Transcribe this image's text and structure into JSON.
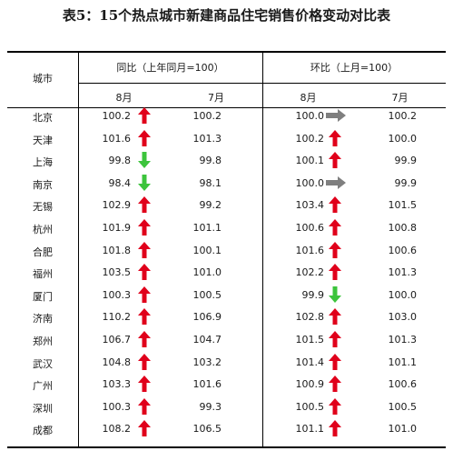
{
  "title": "表5：15个热点城市新建商品住宅销售价格变动对比表",
  "headers": {
    "city": "城市",
    "yoy": "同比（上年同月=100）",
    "mom": "环比（上月=100）",
    "month_aug": "8月",
    "month_jul": "7月"
  },
  "colors": {
    "up": "#e0001b",
    "down": "#3cc43c",
    "flat": "#7f7f7f"
  },
  "rows": [
    {
      "city": "北京",
      "yoy_aug": "100.2",
      "yoy_aug_trend": "up",
      "yoy_jul": "100.2",
      "mom_aug": "100.0",
      "mom_aug_trend": "flat",
      "mom_jul": "100.2"
    },
    {
      "city": "天津",
      "yoy_aug": "101.6",
      "yoy_aug_trend": "up",
      "yoy_jul": "101.3",
      "mom_aug": "100.2",
      "mom_aug_trend": "up",
      "mom_jul": "100.0"
    },
    {
      "city": "上海",
      "yoy_aug": "99.8",
      "yoy_aug_trend": "down",
      "yoy_jul": "99.8",
      "mom_aug": "100.1",
      "mom_aug_trend": "up",
      "mom_jul": "99.9"
    },
    {
      "city": "南京",
      "yoy_aug": "98.4",
      "yoy_aug_trend": "down",
      "yoy_jul": "98.1",
      "mom_aug": "100.0",
      "mom_aug_trend": "flat",
      "mom_jul": "99.9"
    },
    {
      "city": "无锡",
      "yoy_aug": "102.9",
      "yoy_aug_trend": "up",
      "yoy_jul": "99.2",
      "mom_aug": "103.4",
      "mom_aug_trend": "up",
      "mom_jul": "101.5"
    },
    {
      "city": "杭州",
      "yoy_aug": "101.9",
      "yoy_aug_trend": "up",
      "yoy_jul": "101.1",
      "mom_aug": "100.6",
      "mom_aug_trend": "up",
      "mom_jul": "100.8"
    },
    {
      "city": "合肥",
      "yoy_aug": "101.8",
      "yoy_aug_trend": "up",
      "yoy_jul": "100.1",
      "mom_aug": "101.6",
      "mom_aug_trend": "up",
      "mom_jul": "100.6"
    },
    {
      "city": "福州",
      "yoy_aug": "103.5",
      "yoy_aug_trend": "up",
      "yoy_jul": "101.0",
      "mom_aug": "102.2",
      "mom_aug_trend": "up",
      "mom_jul": "101.3"
    },
    {
      "city": "厦门",
      "yoy_aug": "100.3",
      "yoy_aug_trend": "up",
      "yoy_jul": "100.5",
      "mom_aug": "99.9",
      "mom_aug_trend": "down",
      "mom_jul": "100.0"
    },
    {
      "city": "济南",
      "yoy_aug": "110.2",
      "yoy_aug_trend": "up",
      "yoy_jul": "106.9",
      "mom_aug": "102.8",
      "mom_aug_trend": "up",
      "mom_jul": "103.0"
    },
    {
      "city": "郑州",
      "yoy_aug": "106.7",
      "yoy_aug_trend": "up",
      "yoy_jul": "104.7",
      "mom_aug": "101.5",
      "mom_aug_trend": "up",
      "mom_jul": "101.3"
    },
    {
      "city": "武汉",
      "yoy_aug": "104.8",
      "yoy_aug_trend": "up",
      "yoy_jul": "103.2",
      "mom_aug": "101.4",
      "mom_aug_trend": "up",
      "mom_jul": "101.1"
    },
    {
      "city": "广州",
      "yoy_aug": "103.3",
      "yoy_aug_trend": "up",
      "yoy_jul": "101.6",
      "mom_aug": "100.9",
      "mom_aug_trend": "up",
      "mom_jul": "100.6"
    },
    {
      "city": "深圳",
      "yoy_aug": "100.3",
      "yoy_aug_trend": "up",
      "yoy_jul": "99.3",
      "mom_aug": "100.5",
      "mom_aug_trend": "up",
      "mom_jul": "100.5"
    },
    {
      "city": "成都",
      "yoy_aug": "108.2",
      "yoy_aug_trend": "up",
      "yoy_jul": "106.5",
      "mom_aug": "101.1",
      "mom_aug_trend": "up",
      "mom_jul": "101.0"
    }
  ]
}
